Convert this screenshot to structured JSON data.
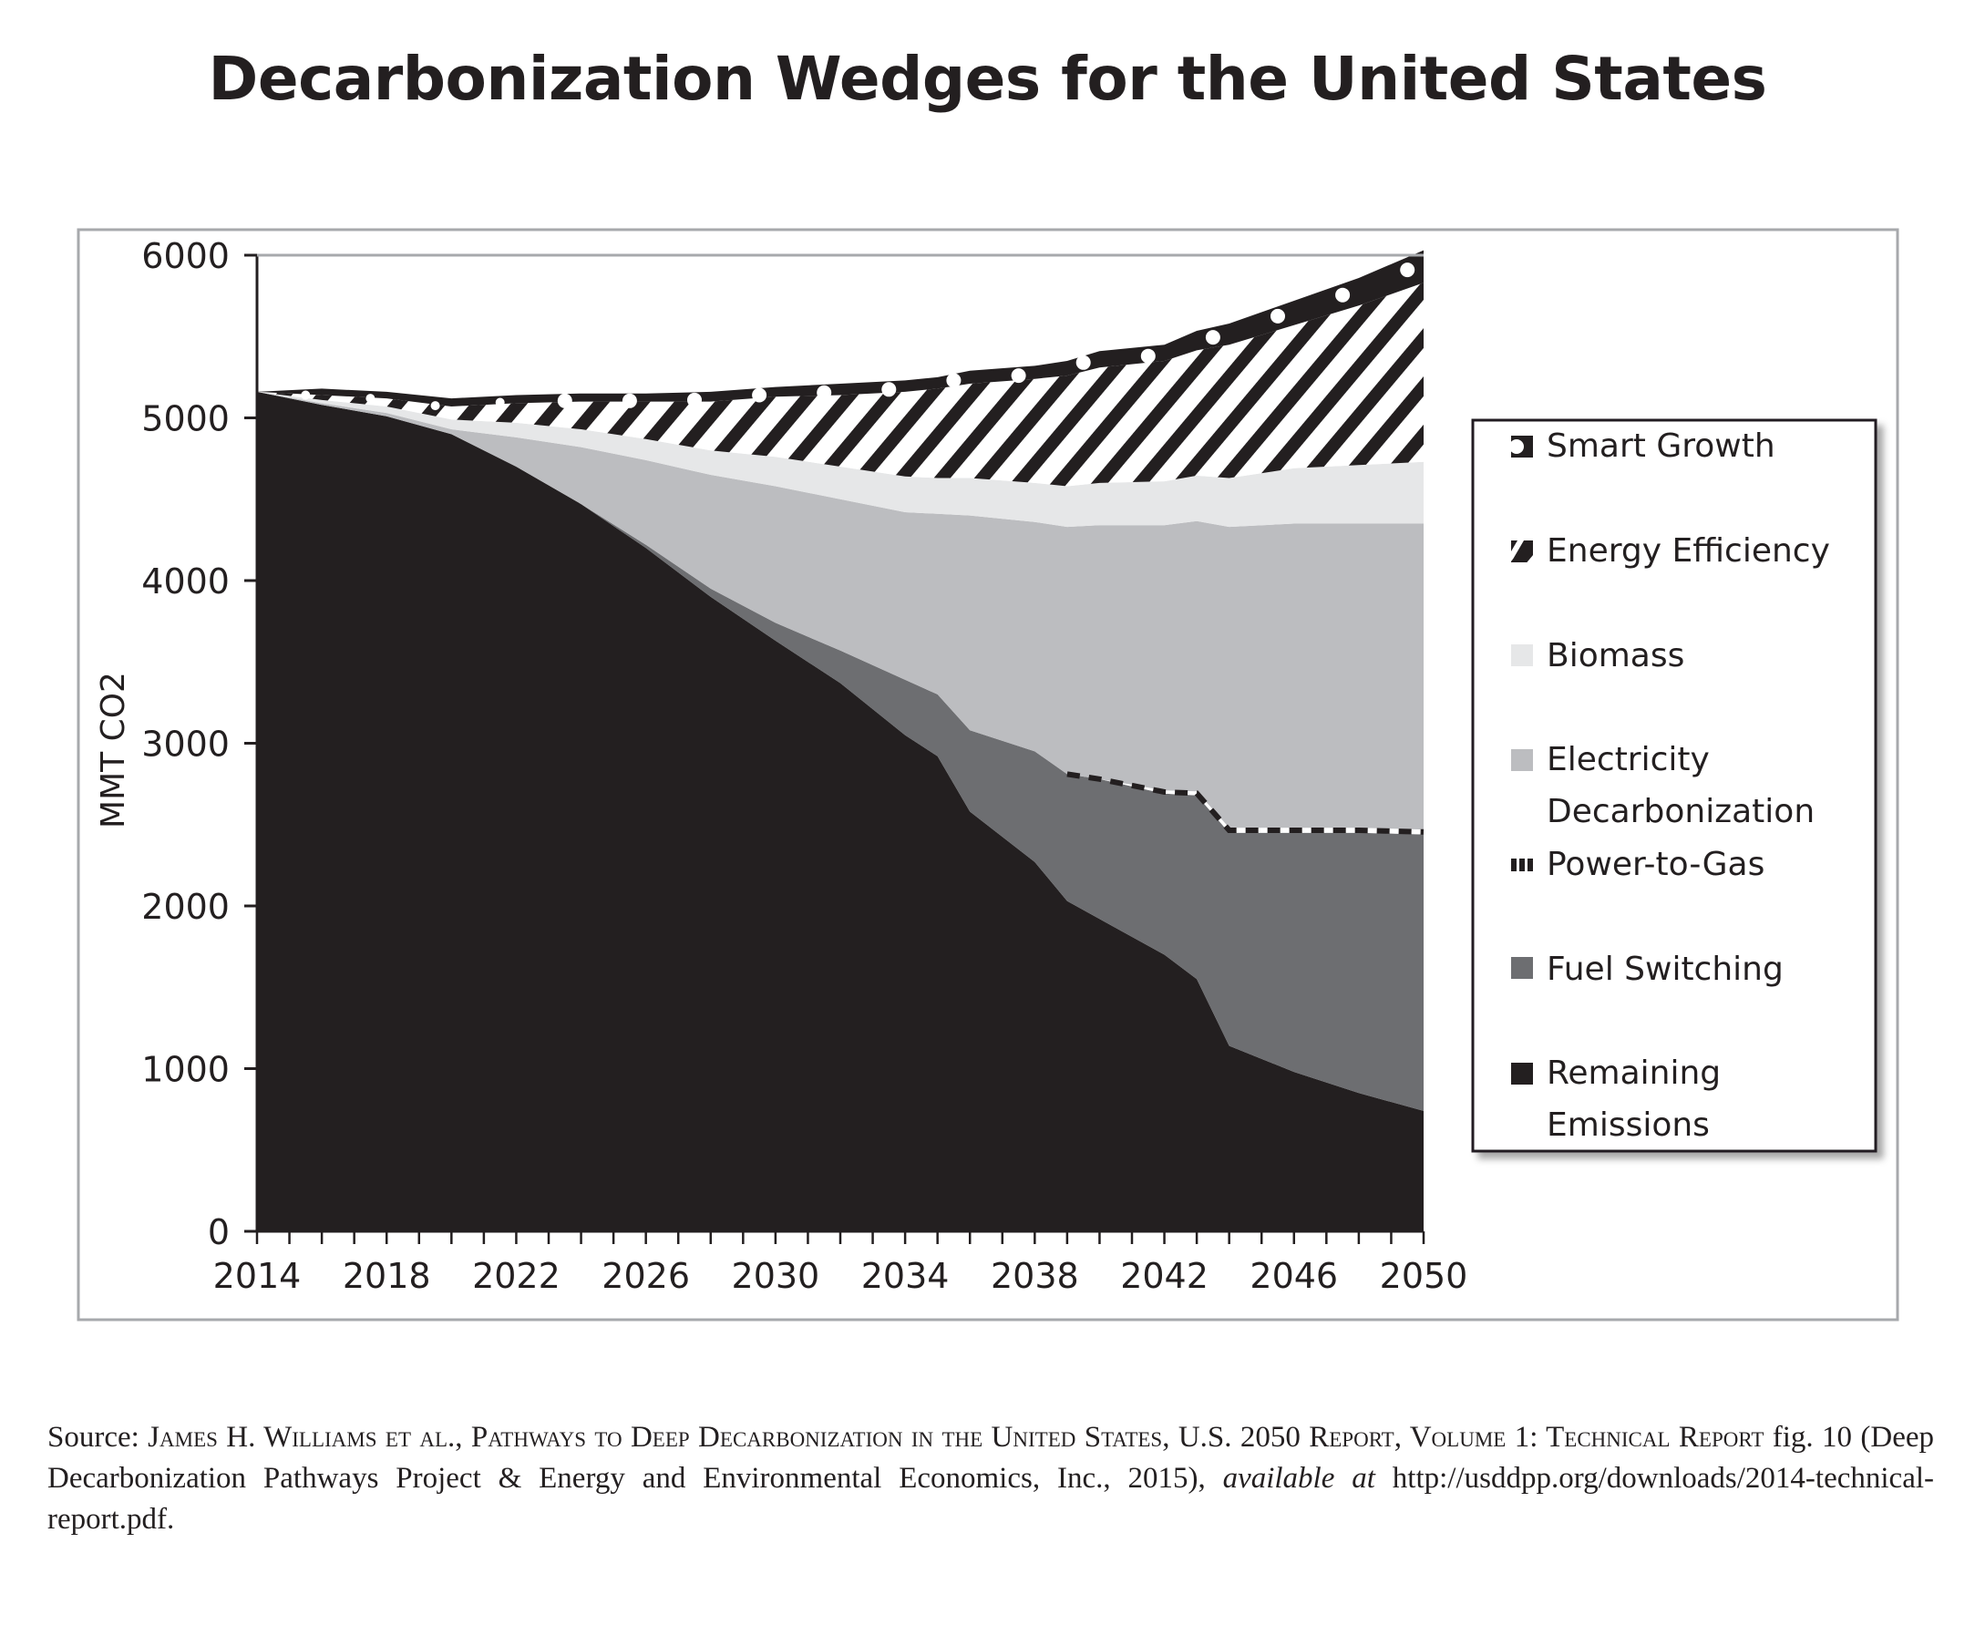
{
  "title": "Decarbonization Wedges for the United States",
  "source": {
    "prefix": "Source: ",
    "authors": "James H. Williams et al., Pathways to Deep Decarbonization in the United States, U.S. 2050 Report, Volume 1: Technical Report",
    "middle": " fig. 10 (Deep Decarbonization Pathways Project & Energy and Environmental Economics, Inc., 2015), ",
    "available": "available at",
    "url": " http://usddpp.org/downloads/2014-technical-report.pdf."
  },
  "colors": {
    "remaining": "#231f20",
    "fuel": "#6d6e71",
    "electricity": "#bcbdc0",
    "biomass": "#e6e7e8",
    "stripe": "#231f20",
    "frame": "#a7a9ac"
  },
  "chart_data": {
    "type": "area",
    "stacked": true,
    "title": "Decarbonization Wedges for the United States",
    "xlabel": "",
    "ylabel": "MMT CO2",
    "xlim": [
      2014,
      2050
    ],
    "ylim": [
      0,
      6000
    ],
    "x_ticks": [
      "2014",
      "2018",
      "2022",
      "2026",
      "2030",
      "2034",
      "2038",
      "2042",
      "2046",
      "2050"
    ],
    "y_ticks": [
      "0",
      "1000",
      "2000",
      "3000",
      "4000",
      "5000",
      "6000"
    ],
    "grid": false,
    "legend_position": "right",
    "x": [
      2014,
      2016,
      2018,
      2020,
      2022,
      2024,
      2026,
      2028,
      2030,
      2032,
      2034,
      2035,
      2036,
      2038,
      2039,
      2040,
      2042,
      2043,
      2044,
      2046,
      2048,
      2050
    ],
    "series": [
      {
        "name": "Remaining Emissions",
        "pattern": "solid-dark",
        "values": [
          5160,
          5080,
          5010,
          4900,
          4700,
          4470,
          4200,
          3900,
          3630,
          3370,
          3050,
          2920,
          2580,
          2270,
          2030,
          1920,
          1700,
          1550,
          1140,
          980,
          850,
          740
        ]
      },
      {
        "name": "Fuel Switching",
        "pattern": "solid-mid",
        "values": [
          0,
          0,
          0,
          0,
          0,
          0,
          20,
          50,
          110,
          200,
          340,
          380,
          500,
          680,
          780,
          860,
          990,
          1130,
          1310,
          1470,
          1600,
          1700
        ]
      },
      {
        "name": "Power-to-Gas",
        "pattern": "dashed-line",
        "values": [
          0,
          0,
          0,
          0,
          0,
          0,
          0,
          0,
          0,
          0,
          0,
          0,
          0,
          0,
          0,
          0,
          20,
          25,
          30,
          30,
          30,
          30
        ]
      },
      {
        "name": "Electricity Decarbonization",
        "pattern": "solid-light",
        "values": [
          0,
          10,
          20,
          30,
          180,
          350,
          520,
          700,
          840,
          930,
          1030,
          1110,
          1320,
          1410,
          1520,
          1560,
          1630,
          1660,
          1850,
          1870,
          1870,
          1880
        ]
      },
      {
        "name": "Biomass",
        "pattern": "solid-lightest",
        "values": [
          0,
          20,
          40,
          60,
          90,
          110,
          130,
          150,
          180,
          200,
          220,
          220,
          230,
          240,
          250,
          260,
          270,
          280,
          300,
          340,
          360,
          380
        ]
      },
      {
        "name": "Energy Efficiency",
        "pattern": "diagonal-stripes",
        "values": [
          0,
          30,
          50,
          80,
          120,
          170,
          230,
          300,
          370,
          440,
          520,
          550,
          580,
          640,
          680,
          710,
          740,
          770,
          820,
          880,
          980,
          1100
        ]
      },
      {
        "name": "Smart Growth",
        "pattern": "dark-with-dots",
        "values": [
          0,
          40,
          40,
          50,
          50,
          50,
          50,
          60,
          60,
          70,
          70,
          70,
          80,
          80,
          90,
          100,
          100,
          120,
          130,
          150,
          170,
          200
        ]
      }
    ]
  },
  "legend": [
    {
      "key": "smart",
      "label": "Smart Growth"
    },
    {
      "key": "eff",
      "label": "Energy Efficiency"
    },
    {
      "key": "bio",
      "label": "Biomass"
    },
    {
      "key": "elec",
      "label": "Electricity",
      "label2": "Decarbonization"
    },
    {
      "key": "p2g",
      "label": "Power-to-Gas"
    },
    {
      "key": "fuel",
      "label": "Fuel Switching"
    },
    {
      "key": "rem",
      "label": "Remaining",
      "label2": "Emissions"
    }
  ]
}
